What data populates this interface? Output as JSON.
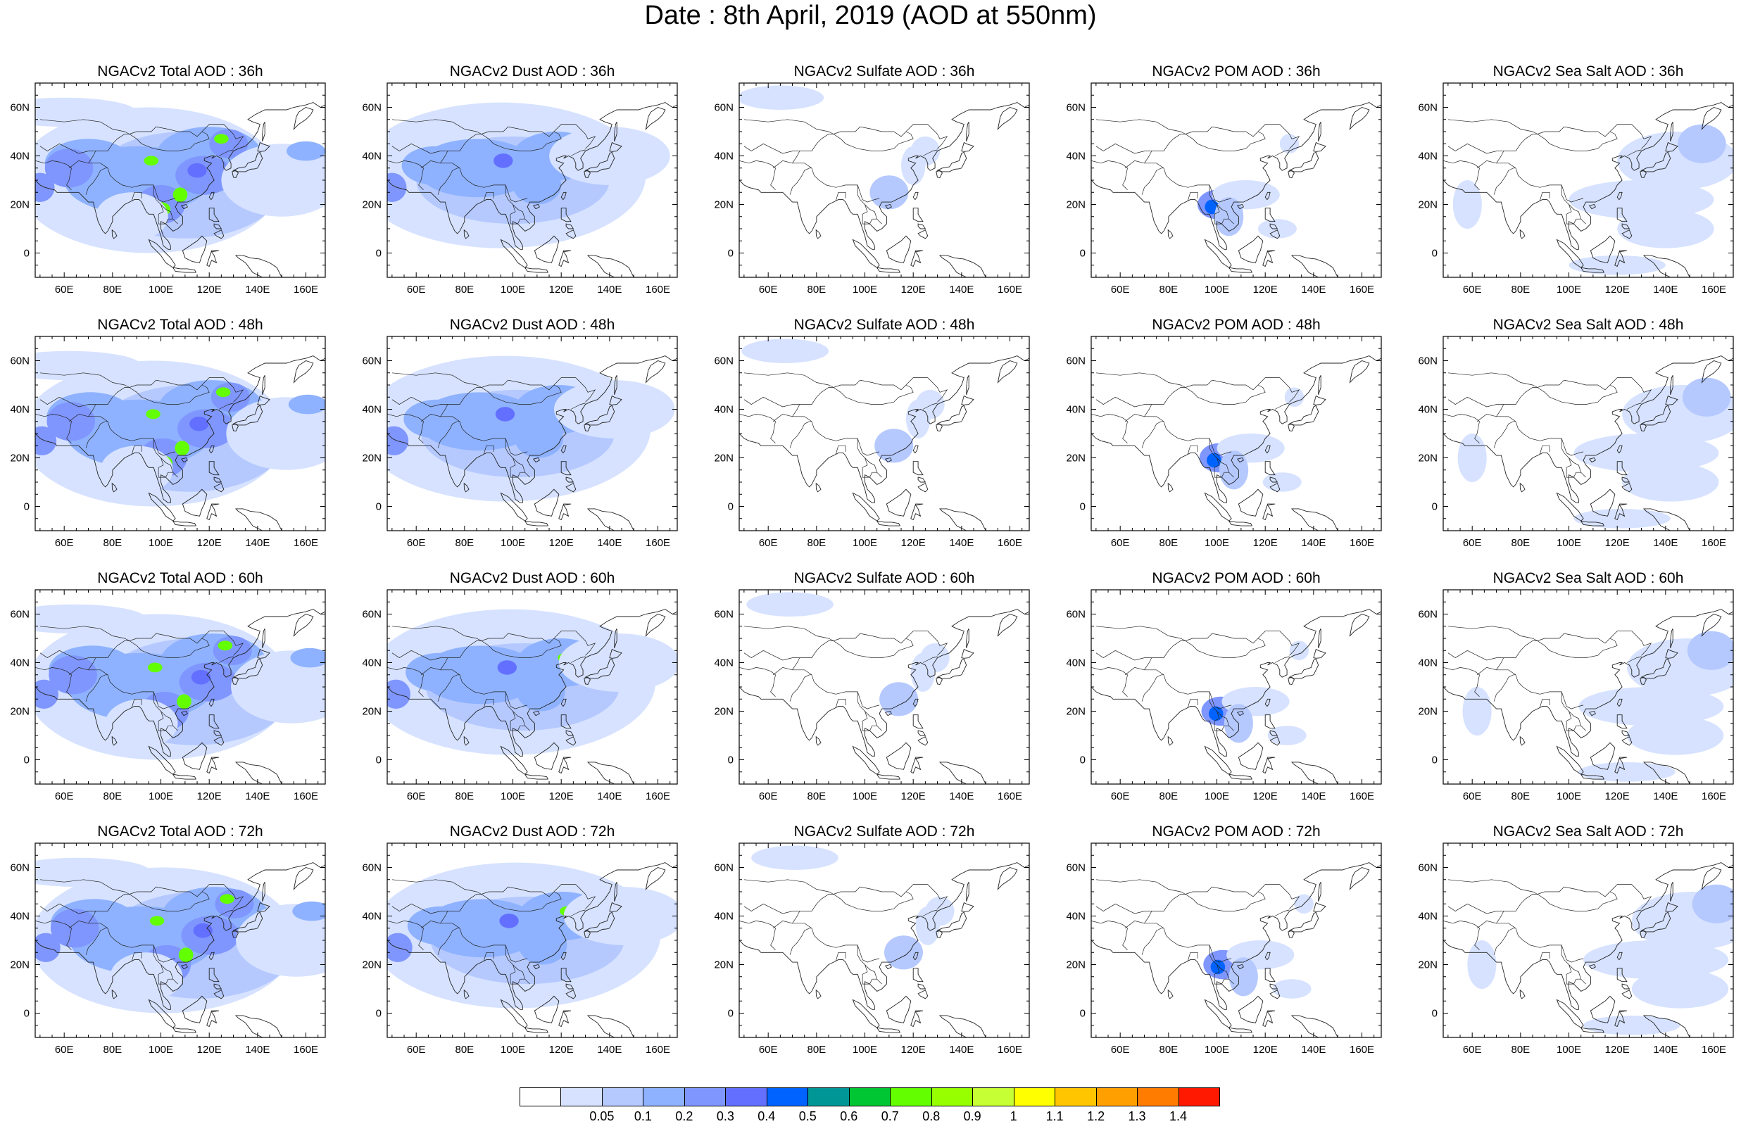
{
  "title": "Date : 8th April, 2019 (AOD at 550nm)",
  "colorbar": {
    "colors": [
      "#ffffff",
      "#d6e2ff",
      "#b5c9ff",
      "#8eb2ff",
      "#7f96ff",
      "#6370ff",
      "#0063ff",
      "#009696",
      "#00c633",
      "#63ff00",
      "#96ff00",
      "#c6ff33",
      "#ffff00",
      "#ffc600",
      "#ffa000",
      "#ff7c00",
      "#ff1900"
    ],
    "labels": [
      "0.05",
      "0.1",
      "0.2",
      "0.3",
      "0.4",
      "0.5",
      "0.6",
      "0.7",
      "0.8",
      "0.9",
      "1",
      "1.1",
      "1.2",
      "1.3",
      "1.4"
    ]
  },
  "axes": {
    "x_ticks": [
      "60E",
      "80E",
      "100E",
      "120E",
      "140E",
      "160E"
    ],
    "y_ticks": [
      "60N",
      "40N",
      "20N",
      "0"
    ]
  },
  "rows": [
    {
      "hour": "36h",
      "panels": [
        {
          "title": "NGACv2 Total AOD : 36h",
          "type": "total"
        },
        {
          "title": "NGACv2 Dust AOD : 36h",
          "type": "dust"
        },
        {
          "title": "NGACv2 Sulfate AOD : 36h",
          "type": "sulfate"
        },
        {
          "title": "NGACv2 POM AOD : 36h",
          "type": "pom"
        },
        {
          "title": "NGACv2 Sea Salt AOD : 36h",
          "type": "seasalt"
        }
      ]
    },
    {
      "hour": "48h",
      "panels": [
        {
          "title": "NGACv2 Total AOD : 48h",
          "type": "total"
        },
        {
          "title": "NGACv2 Dust AOD : 48h",
          "type": "dust"
        },
        {
          "title": "NGACv2 Sulfate AOD : 48h",
          "type": "sulfate"
        },
        {
          "title": "NGACv2 POM AOD : 48h",
          "type": "pom"
        },
        {
          "title": "NGACv2 Sea Salt AOD : 48h",
          "type": "seasalt"
        }
      ]
    },
    {
      "hour": "60h",
      "panels": [
        {
          "title": "NGACv2 Total AOD : 60h",
          "type": "total"
        },
        {
          "title": "NGACv2 Dust AOD : 60h",
          "type": "dust"
        },
        {
          "title": "NGACv2 Sulfate AOD : 60h",
          "type": "sulfate"
        },
        {
          "title": "NGACv2 POM AOD : 60h",
          "type": "pom"
        },
        {
          "title": "NGACv2 Sea Salt AOD : 60h",
          "type": "seasalt"
        }
      ]
    },
    {
      "hour": "72h",
      "panels": [
        {
          "title": "NGACv2 Total AOD : 72h",
          "type": "total"
        },
        {
          "title": "NGACv2 Dust AOD : 72h",
          "type": "dust"
        },
        {
          "title": "NGACv2 Sulfate AOD : 72h",
          "type": "sulfate"
        },
        {
          "title": "NGACv2 POM AOD : 72h",
          "type": "pom"
        },
        {
          "title": "NGACv2 Sea Salt  AOD : 72h",
          "type": "seasalt"
        }
      ]
    }
  ]
}
